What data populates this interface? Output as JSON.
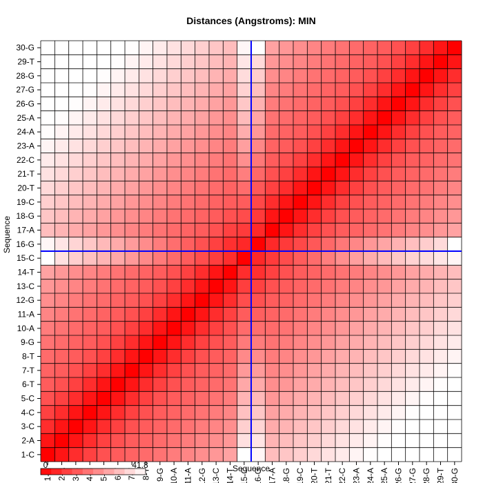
{
  "chart_data": {
    "type": "heatmap",
    "title": "Distances (Angstroms):  MIN",
    "xlabel": "Sequence",
    "ylabel": "Sequence",
    "labels": [
      "1-C",
      "2-A",
      "3-C",
      "4-C",
      "5-C",
      "6-T",
      "7-T",
      "8-T",
      "9-G",
      "10-A",
      "11-A",
      "12-G",
      "13-C",
      "14-T",
      "15-C",
      "16-G",
      "17-A",
      "18-G",
      "19-C",
      "20-T",
      "21-T",
      "22-C",
      "23-A",
      "24-A",
      "25-A",
      "26-G",
      "27-G",
      "28-G",
      "29-T",
      "30-G"
    ],
    "value_range": [
      0,
      41.8
    ],
    "legend_min_label": "0",
    "legend_max_label": "41.8",
    "highlight": {
      "x": "15-C",
      "y": "15-C",
      "color": "#0000ff"
    },
    "color_low": "#ff0000",
    "color_high": "#ffffff",
    "grid": true,
    "matrix_rule": "symmetric; values read from colors — value(i,j) estimated from a band structure with peak near residue 15/16 boundary",
    "band_values": [
      0,
      3.5,
      7.3,
      10.7,
      13.2,
      15.0,
      16.3,
      17.5,
      18.8,
      20.3,
      21.8,
      23.3,
      24.8,
      26.5,
      28.0
    ],
    "cross_values": {
      "15-C": [
        41.8,
        36.7,
        33.9,
        31.6,
        29.5,
        27.5,
        25.1,
        22.5,
        20.0,
        17.5,
        15.1,
        12.6,
        10.2,
        7.3,
        0,
        6.6,
        9.6,
        12.4,
        15.0,
        17.7,
        20.6,
        23.4,
        26.0,
        28.4,
        30.7,
        32.7,
        34.4,
        36.0,
        37.7,
        40.4
      ],
      "16-G": [
        40.4,
        37.6,
        34.9,
        32.6,
        30.3,
        27.9,
        25.4,
        23.0,
        20.4,
        18.0,
        15.6,
        13.2,
        10.7,
        7.9,
        6.6,
        0,
        6.7,
        9.5,
        11.8,
        14.4,
        17.1,
        19.6,
        22.2,
        24.7,
        27.0,
        29.2,
        31.3,
        33.6,
        35.7,
        41.8
      ]
    }
  }
}
